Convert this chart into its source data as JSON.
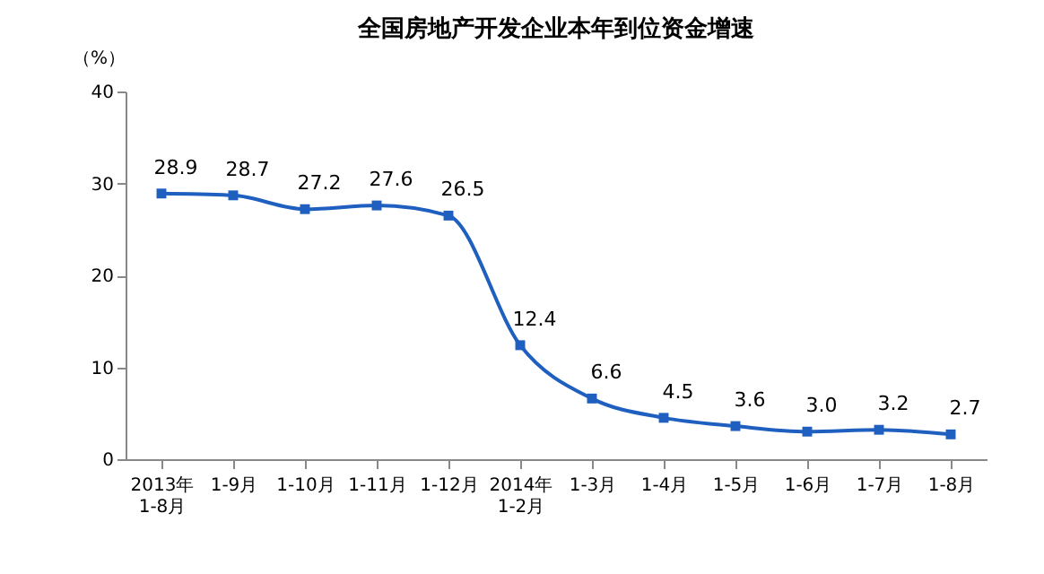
{
  "chart_data": {
    "type": "line",
    "title": "全国房地产开发企业本年到位资金增速",
    "ylabel": "（%）",
    "categories": [
      "2013年\n1-8月",
      "1-9月",
      "1-10月",
      "1-11月",
      "1-12月",
      "2014年\n1-2月",
      "1-3月",
      "1-4月",
      "1-5月",
      "1-6月",
      "1-7月",
      "1-8月"
    ],
    "series": [
      {
        "color": "#1f5fbf",
        "values": [
          28.9,
          28.7,
          27.2,
          27.6,
          26.5,
          12.4,
          6.6,
          4.5,
          3.6,
          3.0,
          3.2,
          2.7
        ]
      }
    ],
    "value_labels": [
      "28.9",
      "28.7",
      "27.2",
      "27.6",
      "26.5",
      "12.4",
      "6.6",
      "4.5",
      "3.6",
      "3.0",
      "3.2",
      "2.7"
    ],
    "ylim": [
      0,
      40
    ],
    "yticks": [
      0,
      10,
      20,
      30,
      40
    ],
    "grid": false,
    "marker": "square",
    "line_style": "solid"
  }
}
